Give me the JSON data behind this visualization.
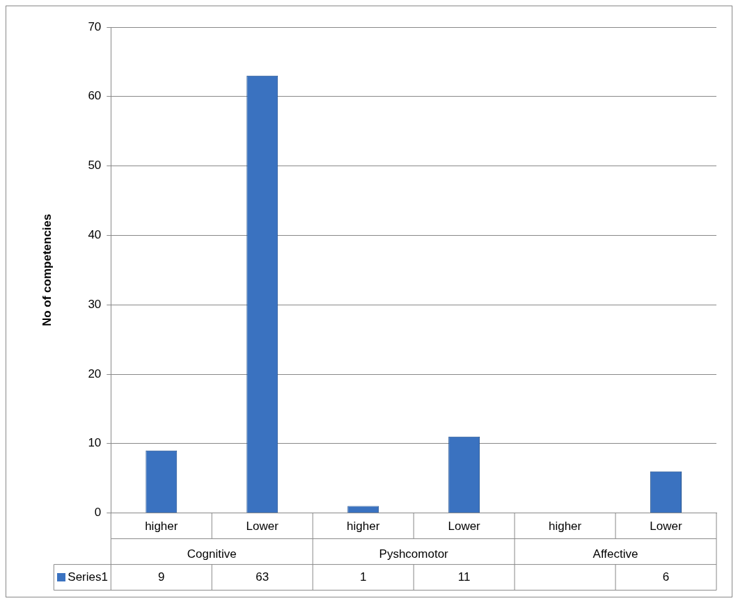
{
  "chart_data": {
    "type": "bar",
    "categories": [
      "higher",
      "Lower",
      "higher",
      "Lower",
      "higher",
      "Lower"
    ],
    "series": [
      {
        "name": "Series1",
        "color": "#3a72c0",
        "values": [
          9,
          63,
          1,
          11,
          null,
          6
        ]
      }
    ],
    "ylabel": "No of competencies",
    "ylim": [
      0,
      70
    ],
    "yticks": [
      0,
      10,
      20,
      30,
      40,
      50,
      60,
      70
    ],
    "grid": "y",
    "legend": "bottom",
    "data_labels": true,
    "annotations": [
      "Cognitive",
      "Pyshcomotor",
      "Affective"
    ]
  }
}
